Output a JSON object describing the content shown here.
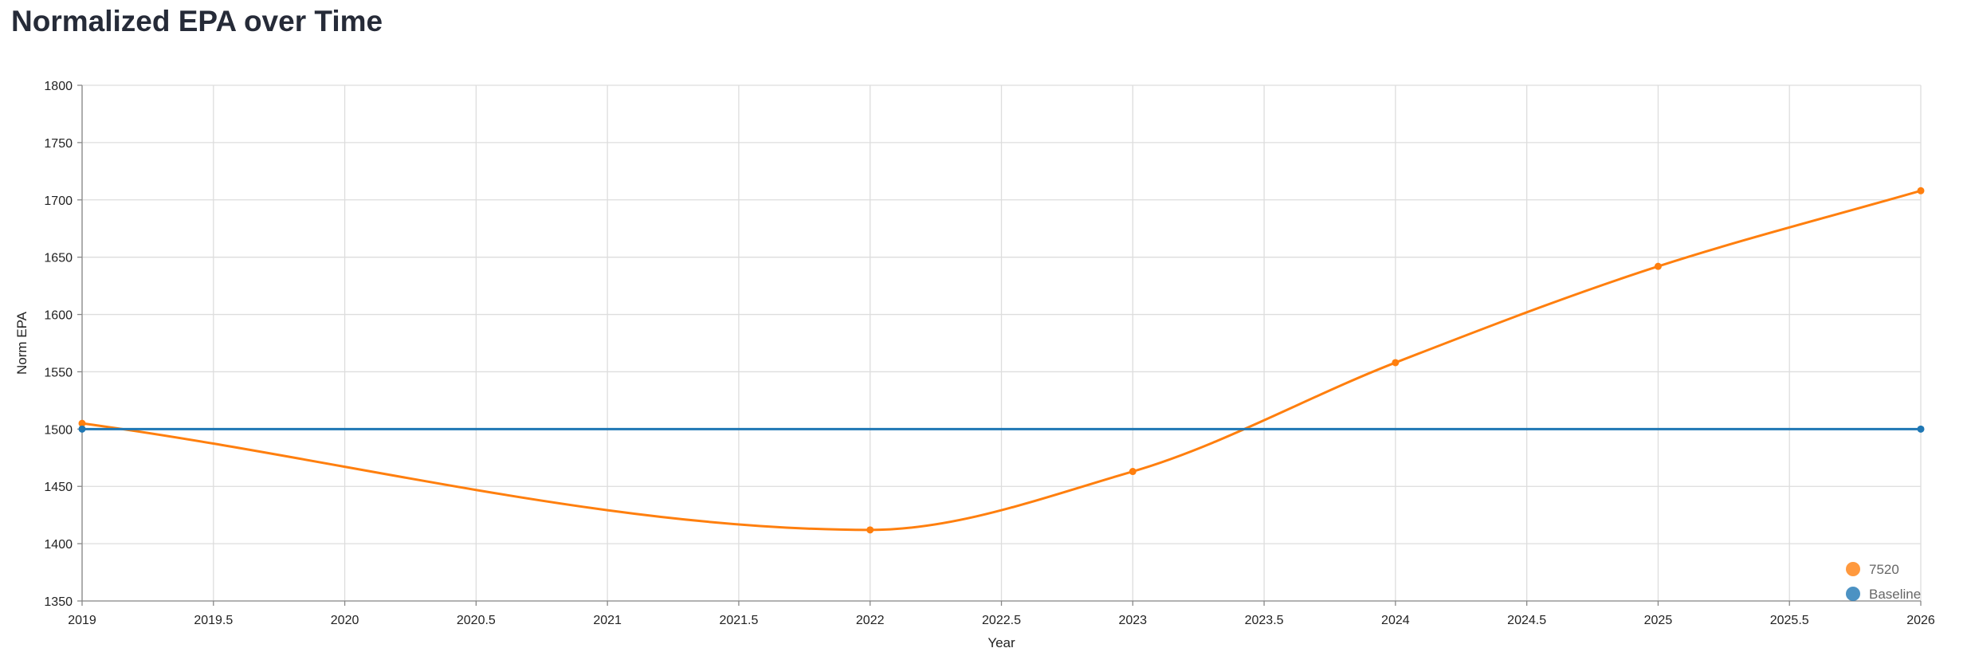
{
  "chart_data": {
    "type": "line",
    "title": "Normalized EPA over Time",
    "xlabel": "Year",
    "ylabel": "Norm EPA",
    "xlim": [
      2019,
      2026
    ],
    "ylim": [
      1350,
      1800
    ],
    "x_ticks": [
      "2019",
      "2019.5",
      "2020",
      "2020.5",
      "2021",
      "2021.5",
      "2022",
      "2022.5",
      "2023",
      "2023.5",
      "2024",
      "2024.5",
      "2025",
      "2025.5",
      "2026"
    ],
    "y_ticks": [
      "1800",
      "1750",
      "1700",
      "1650",
      "1600",
      "1550",
      "1500",
      "1450",
      "1400",
      "1350"
    ],
    "grid": true,
    "legend_position": "bottom-right",
    "series": [
      {
        "name": "7520",
        "color": "#ff7f0e",
        "x": [
          2019,
          2022,
          2023,
          2024,
          2025,
          2026
        ],
        "y": [
          1505,
          1412,
          1463,
          1558,
          1642,
          1708
        ]
      },
      {
        "name": "Baseline",
        "color": "#1f77b4",
        "x": [
          2019,
          2026
        ],
        "y": [
          1500,
          1500
        ]
      }
    ]
  }
}
